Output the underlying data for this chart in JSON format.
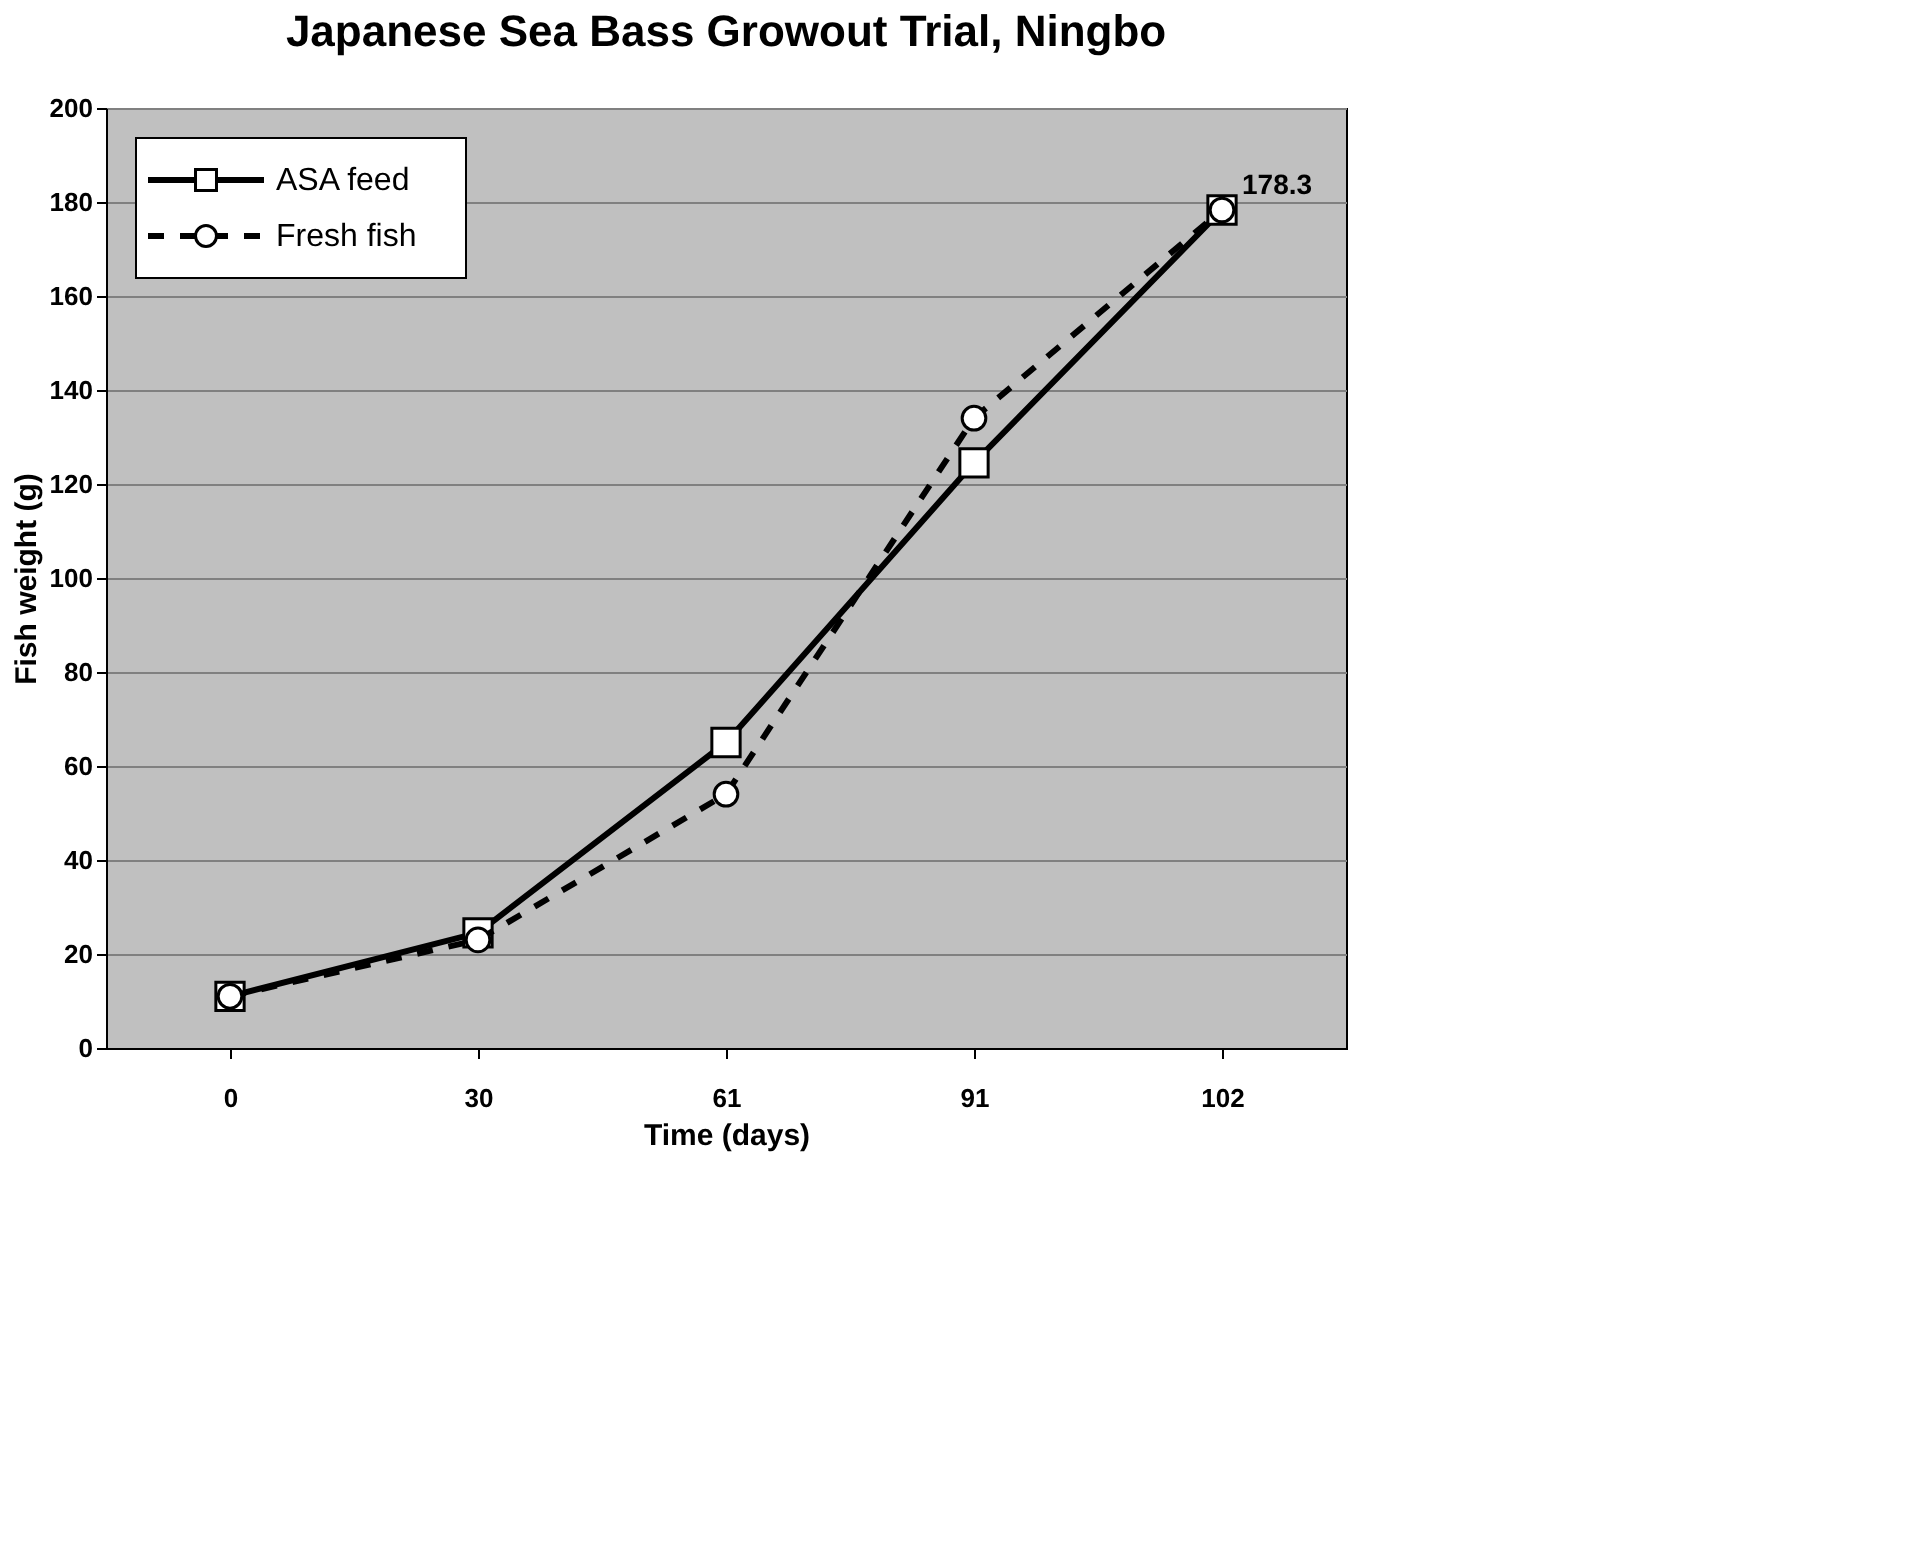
{
  "chart_data": {
    "type": "line",
    "title": "Japanese Sea Bass Growout Trial, Ningbo",
    "xlabel": "Time (days)",
    "ylabel": "Fish weight (g)",
    "categories": [
      "0",
      "30",
      "61",
      "91",
      "102"
    ],
    "series": [
      {
        "name": "ASA feed",
        "color": "#000000",
        "values": [
          11,
          24.5,
          65,
          124.5,
          178.3
        ],
        "marker": "square",
        "line_style": "solid"
      },
      {
        "name": "Fresh fish",
        "color": "#000000",
        "values": [
          11,
          23,
          54,
          134,
          178.3
        ],
        "marker": "circle",
        "line_style": "dashed"
      }
    ],
    "ylim": [
      0,
      200
    ],
    "yticks": [
      0,
      20,
      40,
      60,
      80,
      100,
      120,
      140,
      160,
      180,
      200
    ],
    "grid": "y",
    "legend": "top left",
    "annotations": [
      {
        "text": "178.3",
        "x": "102",
        "y": 178.3
      }
    ]
  }
}
